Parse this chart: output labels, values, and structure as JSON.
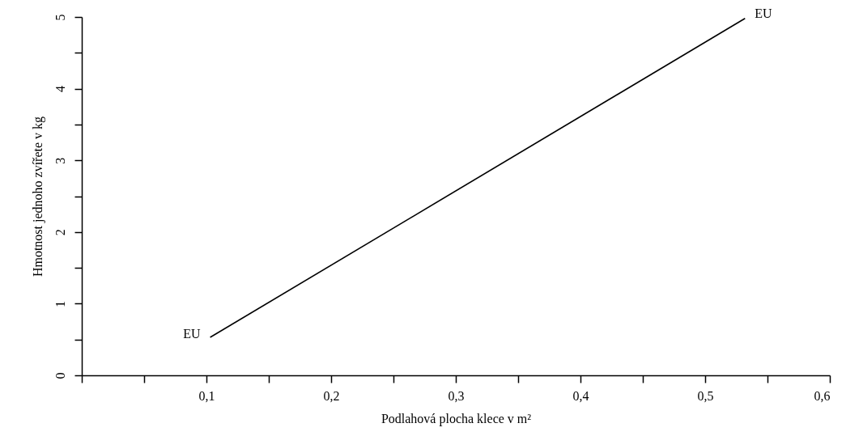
{
  "chart_data": {
    "type": "line",
    "xlabel": "Podlahová plocha klece v m²",
    "ylabel": "Hmotnost jednoho zvířete v kg",
    "series": [
      {
        "x": [
          0.103,
          0.532
        ],
        "values": [
          0.53,
          4.98
        ],
        "color": "#000000"
      }
    ],
    "xlim": [
      0,
      0.6
    ],
    "ylim": [
      0,
      5
    ],
    "xticks": [
      {
        "value": 0,
        "label": null
      },
      {
        "value": 0.05,
        "label": null
      },
      {
        "value": 0.1,
        "label": "0,1"
      },
      {
        "value": 0.15,
        "label": null
      },
      {
        "value": 0.2,
        "label": "0,2"
      },
      {
        "value": 0.25,
        "label": null
      },
      {
        "value": 0.3,
        "label": "0,3"
      },
      {
        "value": 0.35,
        "label": null
      },
      {
        "value": 0.4,
        "label": "0,4"
      },
      {
        "value": 0.45,
        "label": null
      },
      {
        "value": 0.5,
        "label": "0,5"
      },
      {
        "value": 0.55,
        "label": null
      },
      {
        "value": 0.6,
        "label": "0,6"
      }
    ],
    "yticks": [
      0,
      {
        "value": 0.5,
        "label": null
      },
      1,
      {
        "value": 1.5,
        "label": null
      },
      2,
      {
        "value": 2.5,
        "label": null
      },
      3,
      {
        "value": 3.5,
        "label": null
      },
      4,
      {
        "value": 4.5,
        "label": null
      },
      5
    ],
    "annotations": [
      {
        "text": "EU",
        "x": 0.103,
        "y": 0.53
      },
      {
        "text": "EU",
        "x": 0.532,
        "y": 4.98
      }
    ],
    "grid": false,
    "marker": "none",
    "line_style": "solid"
  }
}
